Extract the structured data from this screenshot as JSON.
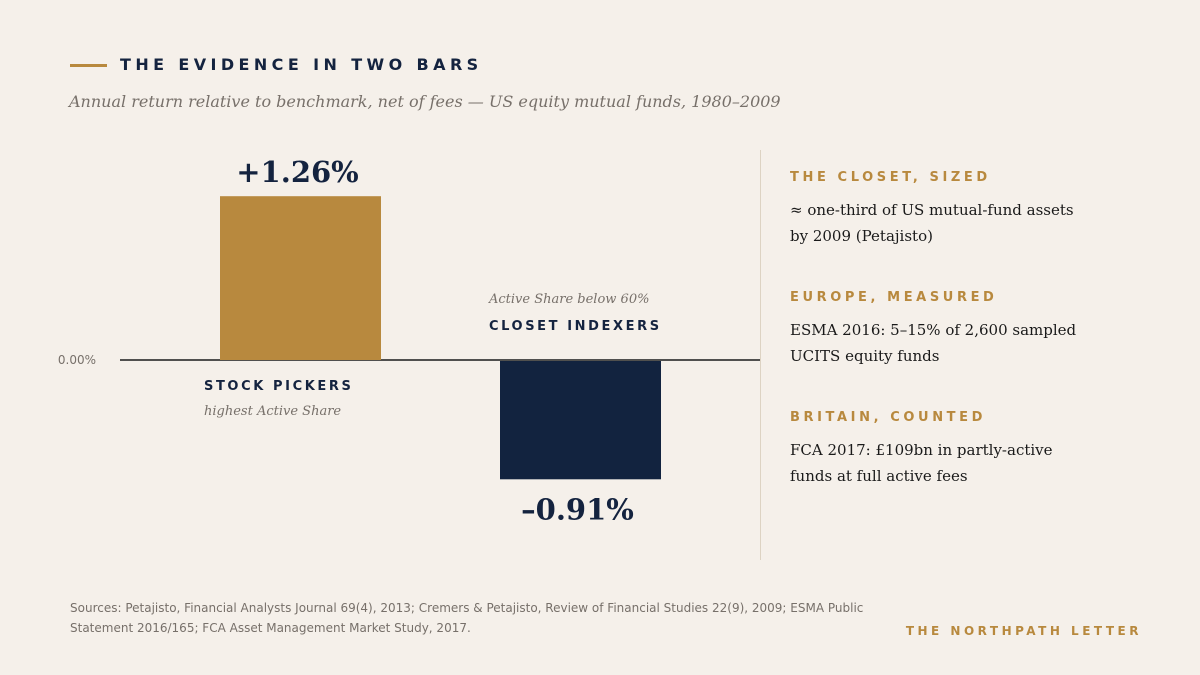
{
  "header": {
    "title": "THE EVIDENCE IN TWO BARS",
    "subtitle": "Annual return relative to benchmark, net of fees — US equity mutual funds, 1980–2009"
  },
  "chart_data": {
    "type": "bar",
    "categories": [
      "STOCK PICKERS",
      "CLOSET INDEXERS"
    ],
    "category_notes": [
      "highest Active Share",
      "Active Share below 60%"
    ],
    "values": [
      1.26,
      -0.91
    ],
    "value_labels": [
      "+1.26%",
      "–0.91%"
    ],
    "baseline_label": "0.00%",
    "colors": [
      "#b8893e",
      "#12233f"
    ],
    "ylim": [
      -1.5,
      1.5
    ],
    "grid": false
  },
  "sidebar": {
    "items": [
      {
        "heading": "THE CLOSET, SIZED",
        "body": "≈ one-third of US mutual-fund assets by 2009 (Petajisto)"
      },
      {
        "heading": "EUROPE, MEASURED",
        "body": "ESMA 2016: 5–15% of 2,600 sampled UCITS equity funds"
      },
      {
        "heading": "BRITAIN, COUNTED",
        "body": "FCA 2017: £109bn in partly-active funds at full active fees"
      }
    ]
  },
  "footer": {
    "sources": "Sources: Petajisto, Financial Analysts Journal 69(4), 2013; Cremers & Petajisto, Review of Financial Studies 22(9), 2009; ESMA Public Statement 2016/165; FCA Asset Management Market Study, 2017.",
    "brand": "THE NORTHPATH LETTER"
  }
}
